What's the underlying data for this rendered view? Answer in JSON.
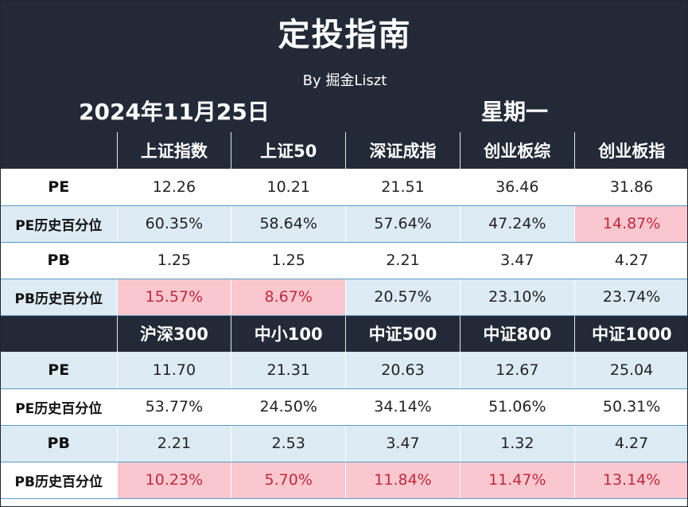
{
  "header": {
    "title": "定投指南",
    "byline": "By 掘金Liszt",
    "date": "2024年11月25日",
    "weekday": "星期一"
  },
  "colors": {
    "header_bg": "#232a37",
    "row_blue": "#ddebf5",
    "highlight_bg": "#fbc7ce",
    "highlight_text": "#c0283e"
  },
  "sections": [
    {
      "indices": [
        "上证指数",
        "上证50",
        "深证成指",
        "创业板综",
        "创业板指"
      ],
      "rows": [
        {
          "label": "PE",
          "values": [
            "12.26",
            "10.21",
            "21.51",
            "36.46",
            "31.86"
          ]
        },
        {
          "label": "PE历史百分位",
          "values": [
            "60.35%",
            "58.64%",
            "57.64%",
            "47.24%",
            "14.87%"
          ]
        },
        {
          "label": "PB",
          "values": [
            "1.25",
            "1.25",
            "2.21",
            "3.47",
            "4.27"
          ]
        },
        {
          "label": "PB历史百分位",
          "values": [
            "15.57%",
            "8.67%",
            "20.57%",
            "23.10%",
            "23.74%"
          ]
        }
      ]
    },
    {
      "indices": [
        "沪深300",
        "中小100",
        "中证500",
        "中证800",
        "中证1000"
      ],
      "rows": [
        {
          "label": "PE",
          "values": [
            "11.70",
            "21.31",
            "20.63",
            "12.67",
            "25.04"
          ]
        },
        {
          "label": "PE历史百分位",
          "values": [
            "53.77%",
            "24.50%",
            "34.14%",
            "51.06%",
            "50.31%"
          ]
        },
        {
          "label": "PB",
          "values": [
            "2.21",
            "2.53",
            "3.47",
            "1.32",
            "4.27"
          ]
        },
        {
          "label": "PB历史百分位",
          "values": [
            "10.23%",
            "5.70%",
            "11.84%",
            "11.47%",
            "13.14%"
          ]
        }
      ]
    }
  ]
}
